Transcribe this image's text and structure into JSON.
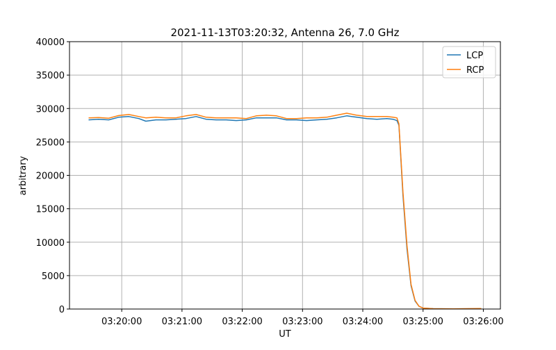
{
  "chart_data": {
    "type": "line",
    "title": "2021-11-13T03:20:32, Antenna 26, 7.0 GHz",
    "xlabel": "UT",
    "ylabel": "arbitrary",
    "ylim": [
      0,
      40000
    ],
    "xlim": [
      "03:19:08",
      "03:26:17"
    ],
    "yticks": [
      0,
      5000,
      10000,
      15000,
      20000,
      25000,
      30000,
      35000,
      40000
    ],
    "xticks": [
      "03:20:00",
      "03:21:00",
      "03:22:00",
      "03:23:00",
      "03:24:00",
      "03:25:00",
      "03:26:00"
    ],
    "grid": true,
    "legend_position": "top-right",
    "x": [
      "03:19:27",
      "03:19:37",
      "03:19:47",
      "03:19:57",
      "03:20:07",
      "03:20:17",
      "03:20:24",
      "03:20:34",
      "03:20:44",
      "03:20:54",
      "03:21:04",
      "03:21:14",
      "03:21:24",
      "03:21:34",
      "03:21:44",
      "03:21:54",
      "03:22:04",
      "03:22:14",
      "03:22:24",
      "03:22:34",
      "03:22:44",
      "03:22:54",
      "03:23:04",
      "03:23:14",
      "03:23:24",
      "03:23:34",
      "03:23:44",
      "03:23:54",
      "03:24:04",
      "03:24:14",
      "03:24:24",
      "03:24:30",
      "03:24:34",
      "03:24:36",
      "03:24:40",
      "03:24:44",
      "03:24:48",
      "03:24:52",
      "03:24:56",
      "03:25:00",
      "03:25:10",
      "03:25:30",
      "03:25:58"
    ],
    "series": [
      {
        "name": "LCP",
        "color": "#1f77b4",
        "values": [
          28300,
          28400,
          28300,
          28700,
          28800,
          28500,
          28100,
          28300,
          28300,
          28400,
          28500,
          28800,
          28400,
          28300,
          28300,
          28200,
          28300,
          28600,
          28600,
          28600,
          28300,
          28300,
          28200,
          28300,
          28400,
          28600,
          28900,
          28700,
          28500,
          28400,
          28500,
          28400,
          28200,
          27500,
          17000,
          9000,
          3500,
          1200,
          400,
          150,
          50,
          30,
          50
        ]
      },
      {
        "name": "RCP",
        "color": "#ff7f0e",
        "values": [
          28600,
          28650,
          28550,
          28950,
          29100,
          28800,
          28600,
          28700,
          28600,
          28600,
          28900,
          29100,
          28700,
          28600,
          28600,
          28600,
          28500,
          28900,
          29000,
          28900,
          28500,
          28500,
          28600,
          28600,
          28700,
          29000,
          29300,
          29000,
          28800,
          28800,
          28800,
          28700,
          28600,
          27700,
          17500,
          9500,
          3700,
          1300,
          400,
          150,
          50,
          30,
          80
        ]
      }
    ]
  }
}
